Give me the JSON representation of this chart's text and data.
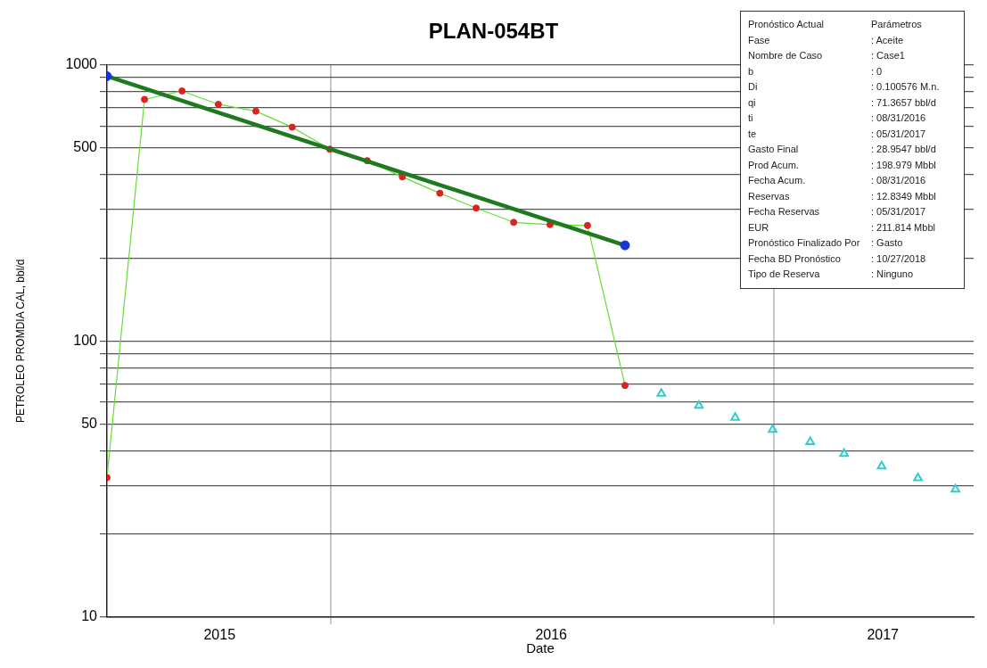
{
  "chart_data": {
    "type": "line",
    "title": "PLAN-054BT",
    "xlabel": "Date",
    "ylabel": "PETROLEO PROMDIA CAL, bbl/d",
    "x": [
      "2015-06-30",
      "2015-07-31",
      "2015-08-31",
      "2015-09-30",
      "2015-10-31",
      "2015-11-30",
      "2015-12-31",
      "2016-01-31",
      "2016-02-29",
      "2016-03-31",
      "2016-04-30",
      "2016-05-31",
      "2016-06-30",
      "2016-07-31",
      "2016-08-31"
    ],
    "series": [
      {
        "color": "#66dd33",
        "marker": "none",
        "values": [
          32,
          750,
          805,
          720,
          680,
          595,
          495,
          450,
          393,
          343,
          303,
          269,
          264,
          262,
          69
        ]
      },
      {
        "type": "scatter",
        "color": "#dd2222",
        "marker": "circle",
        "values": [
          32,
          750,
          805,
          720,
          680,
          595,
          495,
          450,
          393,
          343,
          303,
          269,
          264,
          262,
          69
        ]
      },
      {
        "color": "#1f7a1f",
        "marker": "none",
        "x": [
          "2015-06-30",
          "2016-08-31"
        ],
        "values": [
          910,
          222
        ]
      },
      {
        "type": "scatter",
        "color": "#1a33dd",
        "marker": "circle",
        "x": [
          "2015-06-30",
          "2016-08-31"
        ],
        "values": [
          910,
          222
        ]
      },
      {
        "type": "scatter",
        "color": "#33cccc",
        "marker": "triangle",
        "x": [
          "2016-09-30",
          "2016-10-31",
          "2016-11-30",
          "2016-12-31",
          "2017-01-31",
          "2017-02-28",
          "2017-03-31",
          "2017-04-30",
          "2017-05-31"
        ],
        "values": [
          64.5,
          58.3,
          52.8,
          47.7,
          43.1,
          39.0,
          35.2,
          31.9,
          29.0
        ]
      }
    ],
    "xlim": [
      "2015-06-30",
      "2017-06-15"
    ],
    "xticks": [
      {
        "value": "2015-10-01",
        "label": "2015"
      },
      {
        "value": "2016-01-01",
        "label": null
      },
      {
        "value": "2016-07-01",
        "label": "2016"
      },
      {
        "value": "2017-01-01",
        "label": null
      },
      {
        "value": "2017-04-01",
        "label": "2017"
      }
    ],
    "ylim": [
      10,
      1000
    ],
    "yticks": [
      10,
      {
        "value": 20,
        "label": null
      },
      {
        "value": 30,
        "label": null
      },
      {
        "value": 40,
        "label": null
      },
      50,
      {
        "value": 60,
        "label": null
      },
      {
        "value": 70,
        "label": null
      },
      {
        "value": 80,
        "label": null
      },
      {
        "value": 90,
        "label": null
      },
      100,
      {
        "value": 200,
        "label": null
      },
      {
        "value": 300,
        "label": null
      },
      {
        "value": 400,
        "label": null
      },
      500,
      {
        "value": 600,
        "label": null
      },
      {
        "value": 700,
        "label": null
      },
      {
        "value": 800,
        "label": null
      },
      {
        "value": 900,
        "label": null
      },
      1000
    ],
    "log": "y",
    "grid": true,
    "legend": false,
    "annotations": [
      "Pronóstico Actual",
      "Parámetros",
      "Fase",
      ": Aceite",
      "Nombre de Caso",
      ": Case1",
      "b",
      ": 0",
      "Di",
      ": 0.100576 M.n.",
      "qi",
      ": 71.3657 bbl/d",
      "ti",
      ": 08/31/2016",
      "te",
      ": 05/31/2017",
      "Gasto Final",
      ": 28.9547 bbl/d",
      "Prod Acum.",
      ": 198.979 Mbbl",
      "Fecha Acum.",
      ": 08/31/2016",
      "Reservas",
      ": 12.8349 Mbbl",
      "Fecha Reservas",
      ": 05/31/2017",
      "EUR",
      ": 211.814 Mbbl",
      "Pronóstico Finalizado Por",
      ": Gasto",
      "Fecha BD Pronóstico",
      ": 10/27/2018",
      "Tipo de Reserva",
      ": Ninguno"
    ]
  }
}
